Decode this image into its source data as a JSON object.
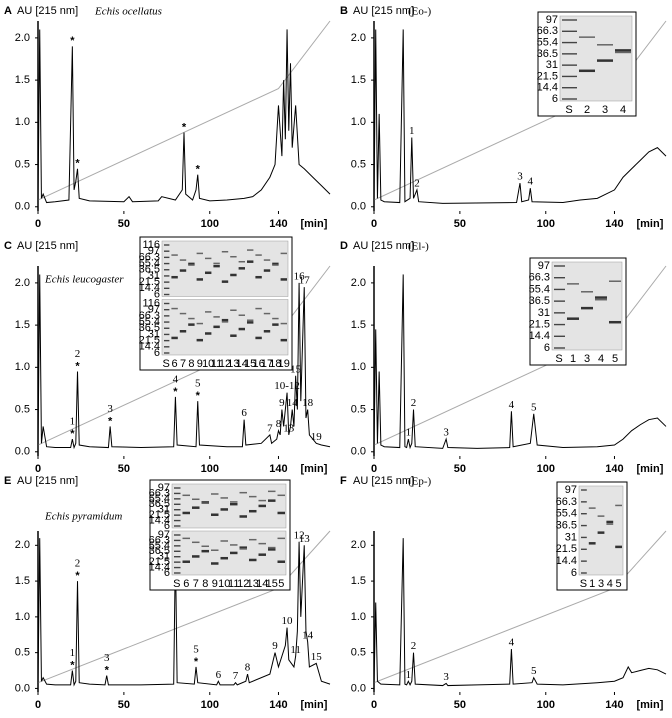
{
  "chart_data": [
    {
      "type": "line",
      "panel": "A",
      "ylabel": "AU [215 nm]",
      "title": "Echis ocellatus",
      "xlabel": "[min]",
      "color": "#000000",
      "gradient_color": "#aaaaaa",
      "x": [
        0,
        1,
        2,
        3,
        5,
        10,
        18,
        20,
        21,
        22,
        23,
        24,
        30,
        50,
        53,
        55,
        70,
        72,
        80,
        84,
        85,
        86,
        90,
        92,
        93,
        94,
        100,
        110,
        120,
        125,
        130,
        135,
        138,
        140,
        142,
        143,
        144,
        145,
        146,
        147,
        148,
        150,
        152,
        155,
        160,
        165,
        170
      ],
      "values": [
        0.05,
        2.1,
        0.1,
        0.15,
        0.05,
        0.06,
        0.08,
        1.9,
        0.2,
        0.3,
        0.45,
        0.1,
        0.07,
        0.06,
        0.12,
        0.06,
        0.07,
        0.12,
        0.08,
        0.2,
        0.88,
        0.15,
        0.08,
        0.2,
        0.38,
        0.1,
        0.07,
        0.08,
        0.1,
        0.12,
        0.2,
        0.35,
        0.5,
        1.2,
        0.6,
        1.5,
        0.8,
        2.1,
        0.9,
        1.7,
        0.7,
        1.2,
        0.5,
        0.45,
        0.35,
        0.25,
        0.15
      ],
      "gradient_x": [
        0,
        140,
        170
      ],
      "gradient": [
        0.08,
        1.4,
        2.2
      ],
      "xlim": [
        0,
        170
      ],
      "ylim": [
        -0.05,
        2.2
      ],
      "xticks": [
        0,
        50,
        100,
        140
      ],
      "yticks": [
        {
          "value": 0,
          "label": "0.0"
        },
        0.5,
        {
          "value": 1,
          "label": "1.0"
        },
        1.5,
        {
          "value": 2,
          "label": "2.0"
        }
      ],
      "peaks": [
        {
          "mark": "*",
          "x": 20,
          "y": 1.9
        },
        {
          "mark": "*",
          "x": 23,
          "y": 0.45
        },
        {
          "mark": "*",
          "x": 85,
          "y": 0.88
        },
        {
          "mark": "*",
          "x": 93,
          "y": 0.38
        }
      ]
    },
    {
      "type": "line",
      "panel": "B",
      "ylabel": "AU [215 nm]",
      "title": "(Eo-)",
      "xlabel": "[min]",
      "color": "#000000",
      "gradient_color": "#aaaaaa",
      "x": [
        0,
        1,
        2,
        3,
        4,
        6,
        15,
        17,
        18,
        21,
        22,
        23,
        25,
        26,
        40,
        83,
        85,
        86,
        90,
        91,
        92,
        110,
        120,
        130,
        140,
        145,
        150,
        155,
        160,
        165,
        170
      ],
      "values": [
        0.05,
        2.1,
        0.1,
        1.1,
        0.08,
        0.06,
        0.05,
        2.1,
        0.06,
        0.1,
        0.82,
        0.1,
        0.2,
        0.06,
        0.04,
        0.05,
        0.28,
        0.06,
        0.08,
        0.22,
        0.06,
        0.05,
        0.08,
        0.1,
        0.2,
        0.35,
        0.45,
        0.55,
        0.65,
        0.7,
        0.6
      ],
      "gradient_x": [
        0,
        140,
        170
      ],
      "gradient": [
        0.08,
        1.4,
        2.2
      ],
      "xlim": [
        0,
        170
      ],
      "ylim": [
        -0.05,
        2.2
      ],
      "xticks": [
        0,
        50,
        100,
        140
      ],
      "yticks": [
        {
          "value": 0,
          "label": "0.0"
        },
        0.5,
        {
          "value": 1,
          "label": "1.0"
        },
        1.5,
        {
          "value": 2,
          "label": "2.0"
        }
      ],
      "peaks": [
        {
          "label": "1",
          "x": 22,
          "y": 0.82
        },
        {
          "label": "2",
          "x": 25,
          "y": 0.2
        },
        {
          "label": "3",
          "x": 85,
          "y": 0.28
        },
        {
          "label": "4",
          "x": 91,
          "y": 0.22
        }
      ],
      "inset": {
        "mw": [
          [
            "97",
            "66.3",
            "55.4",
            "36.5",
            "31",
            "21.5",
            "14.4",
            "6"
          ]
        ],
        "lanes": [
          "S",
          "2",
          "3",
          "4"
        ]
      }
    },
    {
      "type": "line",
      "panel": "C",
      "ylabel": "AU [215 nm]",
      "title": "Echis leucogaster",
      "xlabel": "[min]",
      "color": "#000000",
      "gradient_color": "#aaaaaa",
      "x": [
        0,
        1,
        2,
        3,
        5,
        10,
        19,
        20,
        21,
        22,
        23,
        24,
        30,
        41,
        42,
        43,
        60,
        79,
        80,
        81,
        92,
        93,
        94,
        110,
        119,
        120,
        121,
        130,
        135,
        136,
        139,
        140,
        141,
        142,
        143,
        145,
        146,
        147,
        148,
        149,
        150,
        151,
        152,
        153,
        155,
        156,
        157,
        158,
        162,
        165,
        170
      ],
      "values": [
        0.05,
        2.1,
        0.1,
        0.3,
        0.06,
        0.05,
        0.05,
        0.15,
        0.05,
        0.1,
        0.95,
        0.08,
        0.06,
        0.05,
        0.3,
        0.06,
        0.05,
        0.06,
        0.65,
        0.08,
        0.06,
        0.6,
        0.08,
        0.06,
        0.06,
        0.38,
        0.08,
        0.1,
        0.2,
        0.1,
        0.15,
        0.25,
        0.2,
        0.5,
        0.3,
        0.7,
        0.2,
        0.3,
        0.5,
        0.3,
        0.9,
        0.5,
        2.0,
        0.6,
        1.95,
        0.4,
        0.5,
        0.2,
        0.1,
        0.08,
        0.06
      ],
      "gradient_x": [
        0,
        140,
        170
      ],
      "gradient": [
        0.08,
        1.4,
        2.2
      ],
      "xlim": [
        0,
        170
      ],
      "ylim": [
        -0.05,
        2.2
      ],
      "xticks": [
        0,
        50,
        100,
        140
      ],
      "yticks": [
        {
          "value": 0,
          "label": "0.0"
        },
        0.5,
        {
          "value": 1,
          "label": "1.0"
        },
        1.5,
        {
          "value": 2,
          "label": "2.0"
        }
      ],
      "peaks": [
        {
          "label": "1",
          "mark": "*",
          "x": 20,
          "y": 0.15
        },
        {
          "label": "2",
          "mark": "*",
          "x": 23,
          "y": 0.95
        },
        {
          "label": "3",
          "mark": "*",
          "x": 42,
          "y": 0.3
        },
        {
          "label": "4",
          "mark": "*",
          "x": 80,
          "y": 0.65
        },
        {
          "label": "5",
          "mark": "*",
          "x": 93,
          "y": 0.6
        },
        {
          "label": "6",
          "x": 120,
          "y": 0.38
        },
        {
          "label": "7",
          "x": 135,
          "y": 0.2
        },
        {
          "label": "8",
          "x": 140,
          "y": 0.25
        },
        {
          "label": "9",
          "x": 142,
          "y": 0.5
        },
        {
          "label": "10-12",
          "x": 145,
          "y": 0.7
        },
        {
          "label": "13",
          "x": 146,
          "y": 0.2
        },
        {
          "label": "14",
          "x": 148,
          "y": 0.5
        },
        {
          "label": "15",
          "x": 150,
          "y": 0.9
        },
        {
          "label": "16",
          "x": 152,
          "y": 2.0
        },
        {
          "label": "17",
          "x": 155,
          "y": 1.95
        },
        {
          "label": "18",
          "x": 157,
          "y": 0.5
        },
        {
          "label": "19",
          "x": 162,
          "y": 0.1
        }
      ],
      "inset": {
        "mw": [
          [
            "116",
            "97",
            "66.3",
            "55.4",
            "36.5",
            "31",
            "21.5",
            "14.4",
            "6"
          ],
          [
            "116",
            "97",
            "66.3",
            "55.4",
            "36.5",
            "31",
            "21.5",
            "14.4",
            "6"
          ]
        ],
        "lanes": [
          "S",
          "6",
          "7",
          "8",
          "9",
          "10",
          "11",
          "12",
          "13",
          "14",
          "15",
          "16",
          "17",
          "18",
          "19"
        ]
      }
    },
    {
      "type": "line",
      "panel": "D",
      "ylabel": "AU [215 nm]",
      "title": "(El-)",
      "xlabel": "[min]",
      "color": "#000000",
      "gradient_color": "#aaaaaa",
      "x": [
        0,
        1,
        2,
        3,
        4,
        6,
        15,
        17,
        18,
        19,
        20,
        21,
        22,
        23,
        24,
        40,
        42,
        43,
        60,
        79,
        80,
        81,
        91,
        93,
        95,
        110,
        130,
        140,
        145,
        150,
        155,
        160,
        165,
        170
      ],
      "values": [
        0.05,
        1.45,
        0.1,
        0.95,
        0.08,
        0.06,
        0.05,
        2.1,
        0.06,
        0.05,
        0.15,
        0.05,
        0.1,
        0.5,
        0.06,
        0.04,
        0.15,
        0.05,
        0.04,
        0.05,
        0.48,
        0.06,
        0.1,
        0.45,
        0.08,
        0.05,
        0.06,
        0.08,
        0.15,
        0.25,
        0.32,
        0.38,
        0.4,
        0.3
      ],
      "gradient_x": [
        0,
        140,
        170
      ],
      "gradient": [
        0.08,
        1.4,
        2.2
      ],
      "xlim": [
        0,
        170
      ],
      "ylim": [
        -0.05,
        2.2
      ],
      "xticks": [
        0,
        50,
        100,
        140
      ],
      "yticks": [
        {
          "value": 0,
          "label": "0.0"
        },
        0.5,
        {
          "value": 1,
          "label": "1.0"
        },
        1.5,
        {
          "value": 2,
          "label": "2.0"
        }
      ],
      "peaks": [
        {
          "label": "1",
          "x": 20,
          "y": 0.15
        },
        {
          "label": "2",
          "x": 23,
          "y": 0.5
        },
        {
          "label": "3",
          "x": 42,
          "y": 0.15
        },
        {
          "label": "4",
          "x": 80,
          "y": 0.48
        },
        {
          "label": "5",
          "x": 93,
          "y": 0.45
        }
      ],
      "inset": {
        "mw": [
          [
            "97",
            "66.3",
            "55.4",
            "36.5",
            "31",
            "21.5",
            "14.4",
            "6"
          ]
        ],
        "lanes": [
          "S",
          "1",
          "3",
          "4",
          "5"
        ]
      }
    },
    {
      "type": "line",
      "panel": "E",
      "ylabel": "AU [215 nm]",
      "title": "Echis pyramidum",
      "xlabel": "[min]",
      "color": "#000000",
      "gradient_color": "#aaaaaa",
      "x": [
        0,
        1,
        2,
        3,
        5,
        10,
        19,
        20,
        21,
        22,
        23,
        24,
        30,
        39,
        40,
        41,
        60,
        79,
        80,
        81,
        91,
        92,
        93,
        104,
        105,
        106,
        114,
        115,
        116,
        121,
        122,
        123,
        135,
        138,
        140,
        144,
        145,
        146,
        149,
        150,
        151,
        152,
        153,
        155,
        156,
        157,
        158,
        162,
        165,
        170
      ],
      "values": [
        0.05,
        2.1,
        0.1,
        0.15,
        0.06,
        0.05,
        0.05,
        0.25,
        0.05,
        0.1,
        1.5,
        0.08,
        0.06,
        0.05,
        0.18,
        0.05,
        0.05,
        0.06,
        1.95,
        0.08,
        0.06,
        0.3,
        0.08,
        0.05,
        0.1,
        0.05,
        0.05,
        0.08,
        0.05,
        0.1,
        0.2,
        0.08,
        0.2,
        0.5,
        0.3,
        0.6,
        0.85,
        0.4,
        0.3,
        0.45,
        0.8,
        2.05,
        1.0,
        2.0,
        0.8,
        0.65,
        0.3,
        0.35,
        0.1,
        0.06
      ],
      "gradient_x": [
        0,
        140,
        170
      ],
      "gradient": [
        0.08,
        1.4,
        2.2
      ],
      "xlim": [
        0,
        170
      ],
      "ylim": [
        -0.05,
        2.2
      ],
      "xticks": [
        0,
        50,
        100,
        140
      ],
      "yticks": [
        {
          "value": 0,
          "label": "0.0"
        },
        0.5,
        {
          "value": 1,
          "label": "1.0"
        },
        1.5,
        {
          "value": 2,
          "label": "2.0"
        }
      ],
      "peaks": [
        {
          "label": "1",
          "mark": "*",
          "x": 20,
          "y": 0.25
        },
        {
          "label": "2",
          "mark": "*",
          "x": 23,
          "y": 1.5
        },
        {
          "label": "3",
          "mark": "*",
          "x": 40,
          "y": 0.18
        },
        {
          "label": "4",
          "mark": "*",
          "x": 80,
          "y": 1.95
        },
        {
          "label": "5",
          "mark": "*",
          "x": 92,
          "y": 0.3
        },
        {
          "label": "6",
          "x": 105,
          "y": 0.1
        },
        {
          "label": "7",
          "x": 115,
          "y": 0.08
        },
        {
          "label": "8",
          "x": 122,
          "y": 0.2
        },
        {
          "label": "9",
          "x": 138,
          "y": 0.5
        },
        {
          "label": "10",
          "x": 145,
          "y": 0.85
        },
        {
          "label": "11",
          "x": 150,
          "y": 0.45
        },
        {
          "label": "12",
          "x": 152,
          "y": 2.05
        },
        {
          "label": "13",
          "x": 155,
          "y": 2.0
        },
        {
          "label": "14",
          "x": 157,
          "y": 0.65
        },
        {
          "label": "15",
          "x": 162,
          "y": 0.35
        }
      ],
      "inset": {
        "mw": [
          [
            "97",
            "66.3",
            "55.4",
            "36.5",
            "31",
            "21.5",
            "14.4",
            "6"
          ],
          [
            "97",
            "66.3",
            "55.4",
            "36.5",
            "31",
            "21.5",
            "14.4",
            "6"
          ]
        ],
        "lanes": [
          "S",
          "6",
          "7",
          "8",
          "9",
          "10",
          "11",
          "12",
          "13",
          "14",
          "15",
          "5"
        ]
      }
    },
    {
      "type": "line",
      "panel": "F",
      "ylabel": "AU [215 nm]",
      "title": "(Ep-)",
      "xlabel": "[min]",
      "color": "#000000",
      "gradient_color": "#aaaaaa",
      "x": [
        0,
        1,
        2,
        4,
        15,
        17,
        18,
        19,
        20,
        21,
        22,
        23,
        24,
        40,
        42,
        43,
        60,
        79,
        80,
        81,
        92,
        93,
        95,
        110,
        130,
        140,
        145,
        148,
        150,
        155,
        160,
        165,
        170
      ],
      "values": [
        0.05,
        1.2,
        0.1,
        0.06,
        0.05,
        2.1,
        0.06,
        0.05,
        0.1,
        0.05,
        0.1,
        0.5,
        0.06,
        0.04,
        0.07,
        0.04,
        0.05,
        0.06,
        0.55,
        0.06,
        0.08,
        0.15,
        0.06,
        0.05,
        0.08,
        0.1,
        0.15,
        0.3,
        0.22,
        0.25,
        0.28,
        0.26,
        0.2
      ],
      "gradient_x": [
        0,
        140,
        170
      ],
      "gradient": [
        0.08,
        1.4,
        2.2
      ],
      "xlim": [
        0,
        170
      ],
      "ylim": [
        -0.05,
        2.2
      ],
      "xticks": [
        0,
        50,
        100,
        140
      ],
      "yticks": [
        {
          "value": 0,
          "label": "0.0"
        },
        0.5,
        {
          "value": 1,
          "label": "1.0"
        },
        1.5,
        {
          "value": 2,
          "label": "2.0"
        }
      ],
      "peaks": [
        {
          "label": "1",
          "x": 20,
          "y": 0.1
        },
        {
          "label": "2",
          "x": 23,
          "y": 0.5
        },
        {
          "label": "3",
          "x": 42,
          "y": 0.07
        },
        {
          "label": "4",
          "x": 80,
          "y": 0.55
        },
        {
          "label": "5",
          "x": 93,
          "y": 0.15
        }
      ],
      "inset": {
        "mw": [
          [
            "97",
            "66.3",
            "55.4",
            "36.5",
            "31",
            "21.5",
            "14.4",
            "6"
          ]
        ],
        "lanes": [
          "S",
          "1",
          "3",
          "4",
          "5"
        ]
      }
    }
  ]
}
